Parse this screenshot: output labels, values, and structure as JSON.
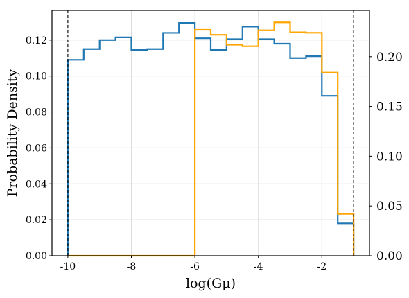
{
  "chart_data": {
    "type": "histogram",
    "xlabel": "log(Gμ)",
    "ylabel": "Probability Density",
    "xlim": [
      -10.5,
      -0.5
    ],
    "ylim_left": [
      0,
      0.1365
    ],
    "ylim_right": [
      0,
      0.2465
    ],
    "grid": true,
    "xticks": [
      -10,
      -8,
      -6,
      -4,
      -2
    ],
    "xtick_labels": [
      "-10",
      "-8",
      "-6",
      "-4",
      "-2"
    ],
    "yticks_left": [
      0.0,
      0.02,
      0.04,
      0.06,
      0.08,
      0.1,
      0.12
    ],
    "ytick_labels_left": [
      "0.00",
      "0.02",
      "0.04",
      "0.06",
      "0.08",
      "0.10",
      "0.12"
    ],
    "yticks_right": [
      0.0,
      0.05,
      0.1,
      0.15,
      0.2
    ],
    "ytick_labels_right": [
      "0.00",
      "0.05",
      "0.10",
      "0.15",
      "0.20"
    ],
    "vlines": [
      -10,
      -1
    ],
    "series": [
      {
        "axis": "left",
        "color": "#1f77b4",
        "bin_edges": [
          -10,
          -9.5,
          -9,
          -8.5,
          -8,
          -7.5,
          -7,
          -6.5,
          -6,
          -5.5,
          -5,
          -4.5,
          -4,
          -3.5,
          -3,
          -2.5,
          -2,
          -1.5,
          -1
        ],
        "values": [
          0.109,
          0.115,
          0.12,
          0.1215,
          0.1145,
          0.115,
          0.124,
          0.1295,
          0.121,
          0.1145,
          0.1205,
          0.1275,
          0.1205,
          0.118,
          0.11,
          0.111,
          0.089,
          0.018
        ]
      },
      {
        "axis": "right",
        "color": "#ffa500",
        "bin_edges": [
          -10,
          -6,
          -5.5,
          -5,
          -4.5,
          -4,
          -3.5,
          -3,
          -2.5,
          -2,
          -1.5,
          -1
        ],
        "values": [
          0.0,
          0.227,
          0.222,
          0.212,
          0.2105,
          0.2265,
          0.2345,
          0.2245,
          0.224,
          0.184,
          0.042
        ]
      }
    ]
  }
}
